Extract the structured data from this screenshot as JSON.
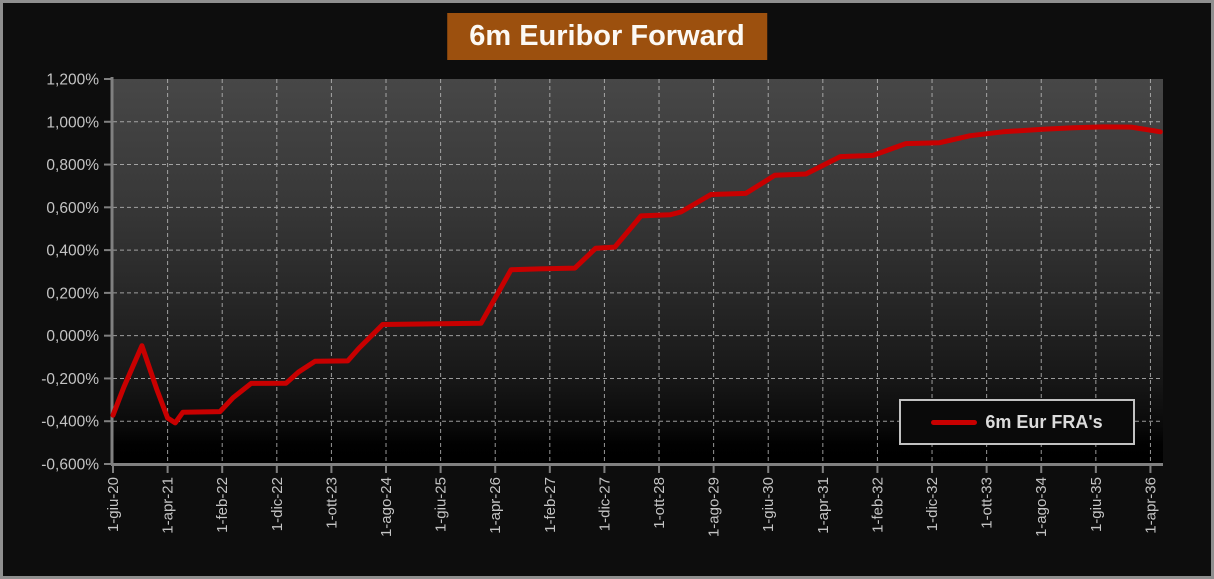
{
  "title": "6m Euribor Forward",
  "chart_data": {
    "type": "line",
    "title": "6m Euribor Forward",
    "legend_position": "bottom-right",
    "grid": "dashed",
    "locale_decimal": "comma",
    "ylim": [
      -0.6,
      1.2
    ],
    "xlim_months": [
      0,
      192.3
    ],
    "y_axis": {
      "tick_values": [
        1.2,
        1.0,
        0.8,
        0.6,
        0.4,
        0.2,
        0.0,
        -0.2,
        -0.4,
        -0.6
      ],
      "tick_labels": [
        "1,200%",
        "1,000%",
        "0,800%",
        "0,600%",
        "0,400%",
        "0,200%",
        "0,000%",
        "-0,200%",
        "-0,400%",
        "-0,600%"
      ]
    },
    "x_axis": {
      "tick_months": [
        0,
        10,
        20,
        30,
        40,
        50,
        60,
        70,
        80,
        90,
        100,
        110,
        120,
        130,
        140,
        150,
        160,
        170,
        180,
        190
      ],
      "tick_labels": [
        "1-giu-20",
        "1-apr-21",
        "1-feb-22",
        "1-dic-22",
        "1-ott-23",
        "1-ago-24",
        "1-giu-25",
        "1-apr-26",
        "1-feb-27",
        "1-dic-27",
        "1-ott-28",
        "1-ago-29",
        "1-giu-30",
        "1-apr-31",
        "1-feb-32",
        "1-dic-32",
        "1-ott-33",
        "1-ago-34",
        "1-giu-35",
        "1-apr-36"
      ]
    },
    "series": [
      {
        "name": "6m Eur FRA's",
        "color": "#C80000",
        "points_months_pct": [
          [
            0,
            -0.372
          ],
          [
            2,
            -0.24
          ],
          [
            5.3,
            -0.047
          ],
          [
            8,
            -0.25
          ],
          [
            10,
            -0.385
          ],
          [
            11.4,
            -0.408
          ],
          [
            12.8,
            -0.358
          ],
          [
            19.6,
            -0.355
          ],
          [
            22,
            -0.29
          ],
          [
            25.3,
            -0.223
          ],
          [
            31.7,
            -0.222
          ],
          [
            34,
            -0.17
          ],
          [
            37,
            -0.12
          ],
          [
            43,
            -0.118
          ],
          [
            45,
            -0.06
          ],
          [
            49.4,
            0.052
          ],
          [
            58,
            0.055
          ],
          [
            67.4,
            0.058
          ],
          [
            72.9,
            0.308
          ],
          [
            78,
            0.312
          ],
          [
            84.6,
            0.316
          ],
          [
            88.4,
            0.409
          ],
          [
            91.9,
            0.414
          ],
          [
            96.7,
            0.56
          ],
          [
            102,
            0.565
          ],
          [
            104,
            0.578
          ],
          [
            109.5,
            0.66
          ],
          [
            115.9,
            0.665
          ],
          [
            121.2,
            0.75
          ],
          [
            126.9,
            0.756
          ],
          [
            133.2,
            0.837
          ],
          [
            139.2,
            0.843
          ],
          [
            145.2,
            0.898
          ],
          [
            151.4,
            0.902
          ],
          [
            157,
            0.935
          ],
          [
            163,
            0.953
          ],
          [
            170.3,
            0.965
          ],
          [
            176,
            0.972
          ],
          [
            181.3,
            0.976
          ],
          [
            186.5,
            0.975
          ],
          [
            191.8,
            0.953
          ]
        ]
      }
    ],
    "colors": {
      "page_background": "#0D0D0D",
      "frame_border": "#8F8F8F",
      "title_background": "#9C500E",
      "title_text": "#FCF9F4",
      "plot_gradient_top": "#474747",
      "plot_gradient_bottom": "#000000",
      "gridline": "#BDBDBD",
      "axis": "#808080",
      "axis_label_text": "#C4C4C4",
      "series_red": "#C80000",
      "legend_border": "#C2C2C2",
      "legend_background": "#0A0A0A",
      "legend_text": "#DCDCDC"
    }
  }
}
